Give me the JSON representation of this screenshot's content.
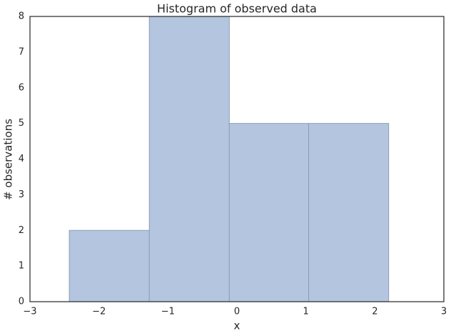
{
  "chart_data": {
    "type": "histogram",
    "title": "Histogram of observed data",
    "x_label": "x",
    "y_label": "# observations",
    "bins": [
      -2.43,
      -1.27,
      -0.11,
      1.04,
      2.2
    ],
    "values": [
      2,
      8,
      5,
      5
    ],
    "color": "#b3c5df",
    "edgecolor": "#8d9db6",
    "xlim": [
      -3,
      3
    ],
    "xticks": [
      {
        "value": -3,
        "label": "−3"
      },
      {
        "value": -2,
        "label": "−2"
      },
      {
        "value": -1,
        "label": "−1"
      },
      0,
      1,
      2,
      3
    ],
    "ylim": [
      0,
      8
    ],
    "yticks": [
      0,
      1,
      2,
      3,
      4,
      5,
      6,
      7,
      8
    ],
    "grid": false
  }
}
